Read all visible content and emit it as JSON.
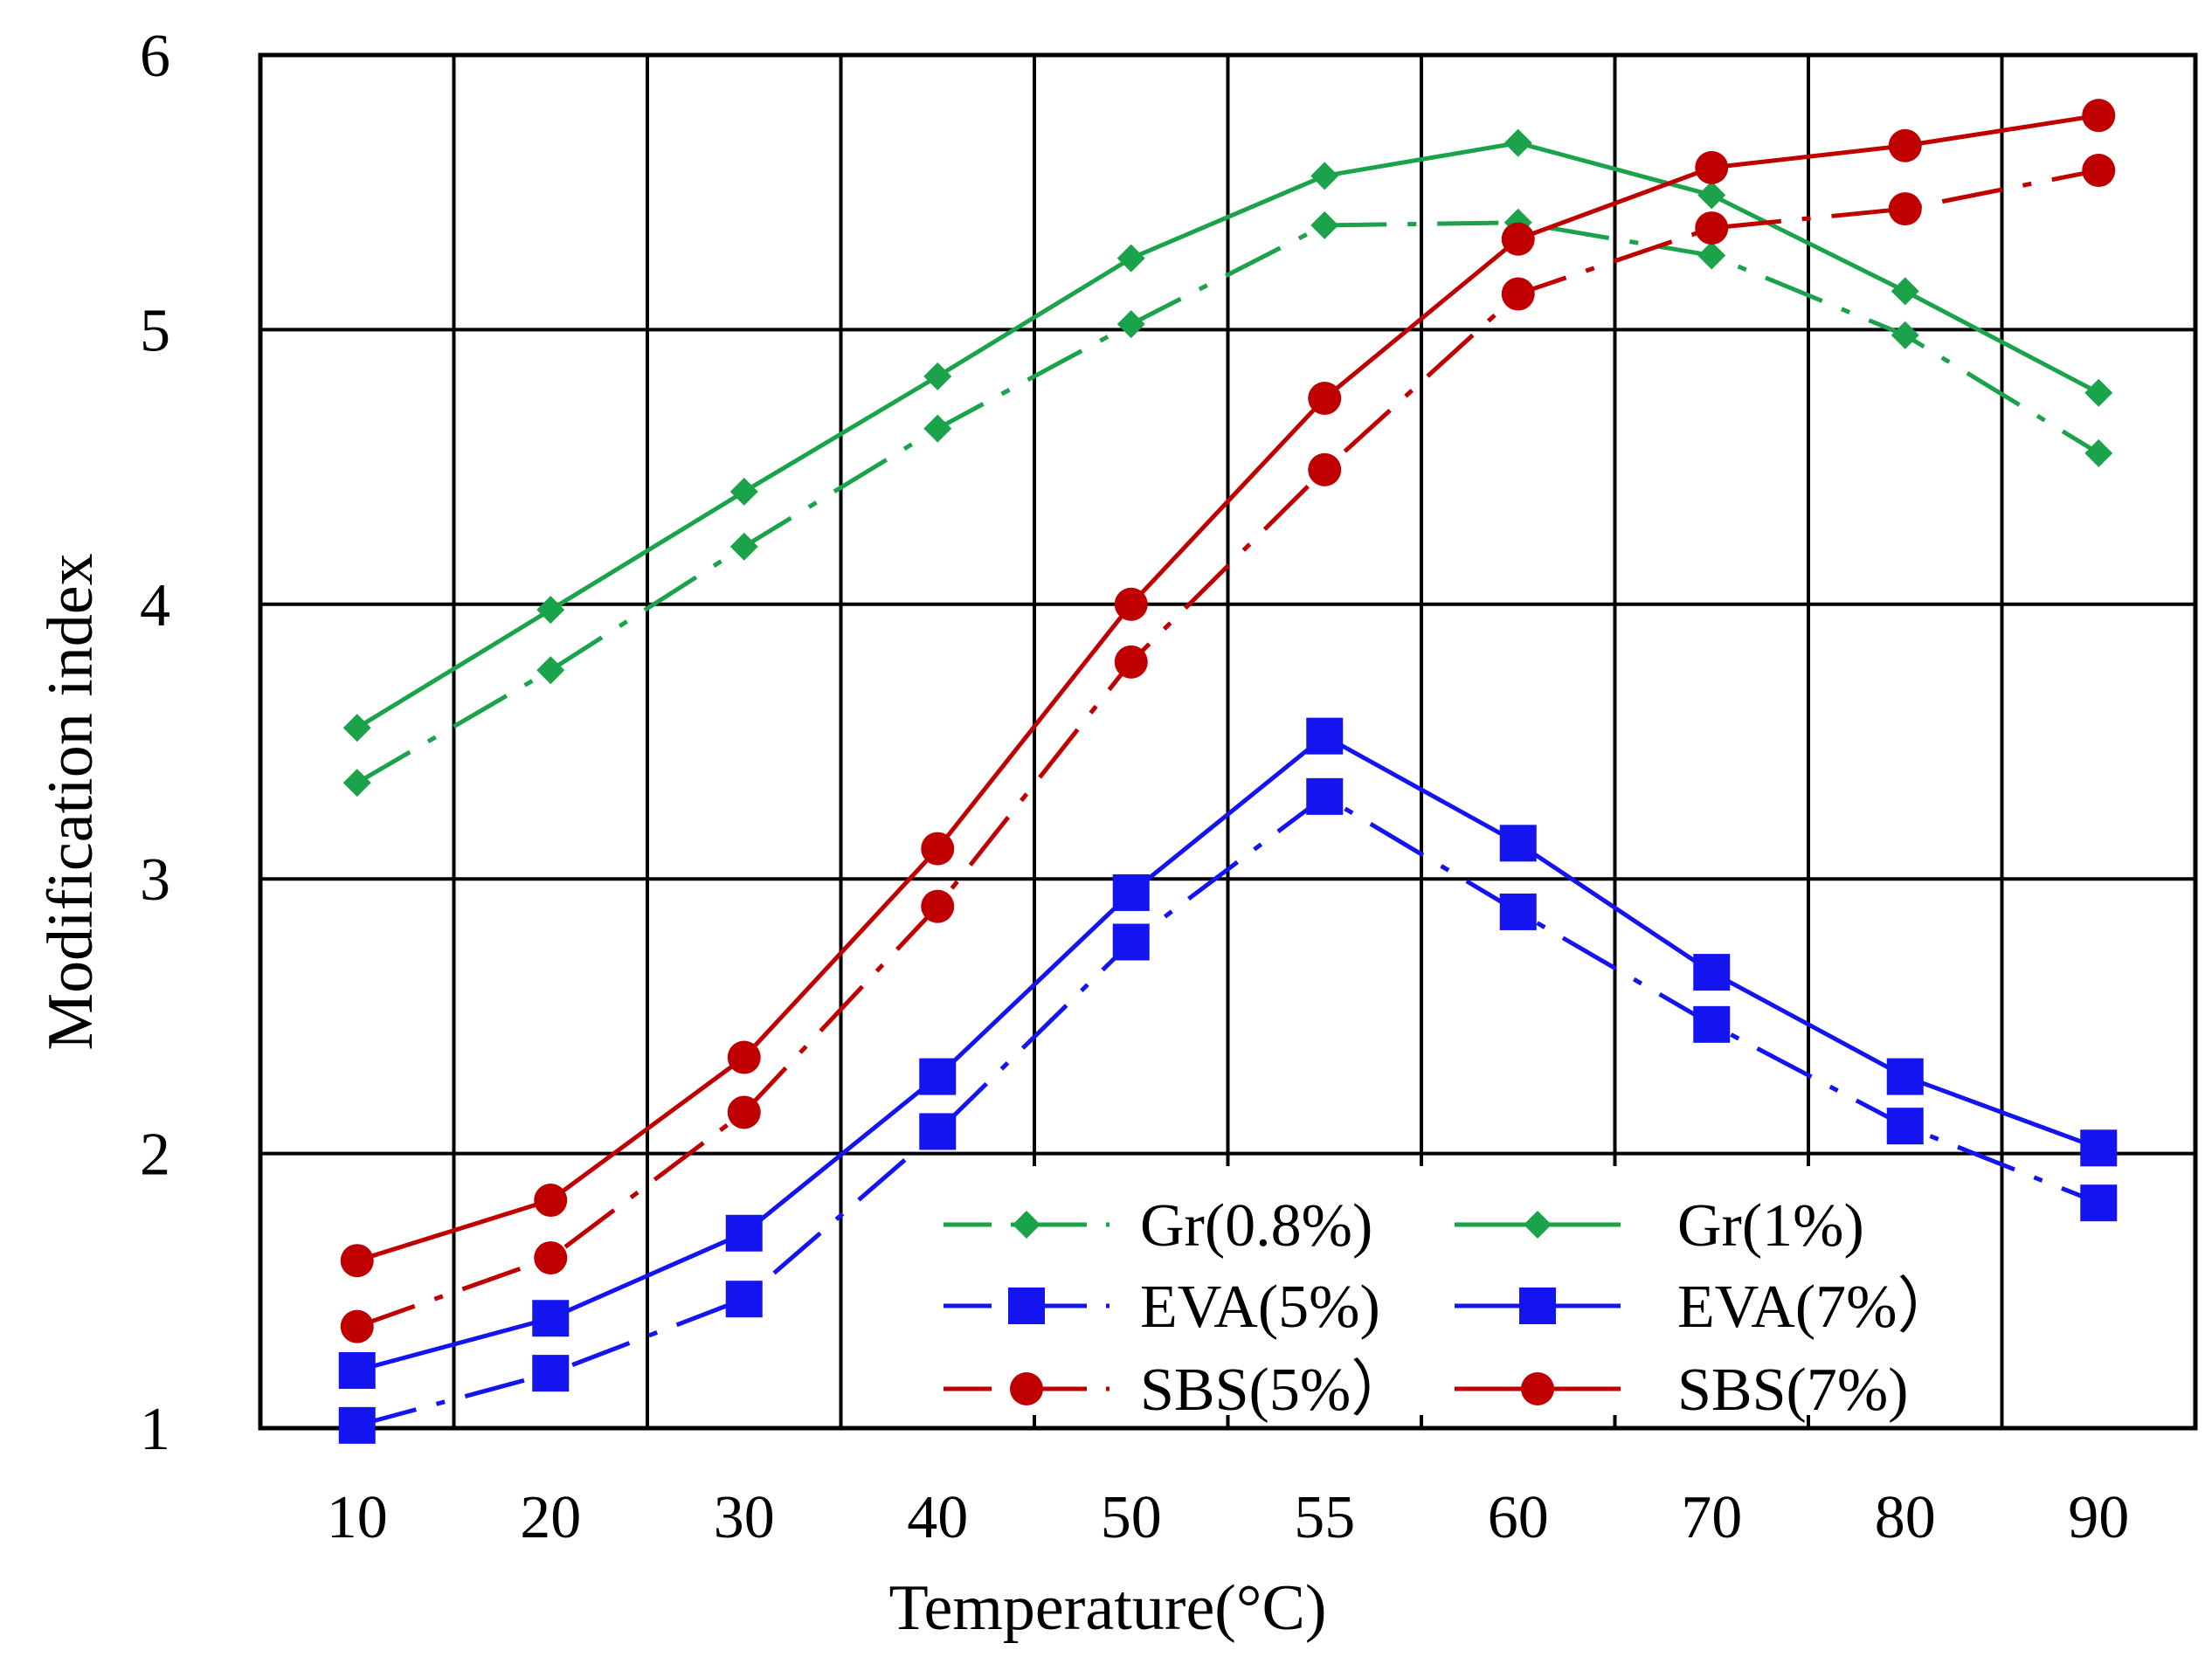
{
  "chart_data": {
    "type": "line",
    "title": "",
    "xlabel": "Temperature(°C)",
    "ylabel": "Modification index",
    "categories": [
      "10",
      "20",
      "30",
      "40",
      "50",
      "55",
      "60",
      "70",
      "80",
      "90"
    ],
    "ylim": [
      1,
      6
    ],
    "yticks": [
      "1",
      "2",
      "3",
      "4",
      "5",
      "6"
    ],
    "grid": true,
    "legend_position": "bottom-right",
    "series": [
      {
        "name": "Gr(0.8%)",
        "style": "dashdot",
        "marker": "diamond",
        "color": "#1aa34a",
        "values": [
          3.35,
          3.76,
          4.21,
          4.64,
          5.02,
          5.38,
          5.39,
          5.27,
          4.98,
          4.55
        ]
      },
      {
        "name": "Gr(1%)",
        "style": "solid",
        "marker": "diamond",
        "color": "#1aa34a",
        "values": [
          3.55,
          3.98,
          4.41,
          4.83,
          5.26,
          5.56,
          5.68,
          5.49,
          5.14,
          4.77
        ]
      },
      {
        "name": "EVA(5%)",
        "style": "dashdot",
        "marker": "square",
        "color": "#1414f0",
        "values": [
          1.01,
          1.2,
          1.47,
          2.08,
          2.77,
          3.3,
          2.88,
          2.47,
          2.1,
          1.82
        ]
      },
      {
        "name": "EVA(7%)",
        "style": "solid",
        "marker": "square",
        "color": "#1414f0",
        "values": [
          1.21,
          1.4,
          1.71,
          2.28,
          2.95,
          3.52,
          3.13,
          2.66,
          2.28,
          2.02
        ]
      },
      {
        "name": "SBS(5%)",
        "style": "dashdot",
        "marker": "circle",
        "color": "#c00000",
        "values": [
          1.37,
          1.62,
          2.15,
          2.9,
          3.79,
          4.49,
          5.13,
          5.37,
          5.44,
          5.58
        ]
      },
      {
        "name": "SBS(7%)",
        "style": "solid",
        "marker": "circle",
        "color": "#c00000",
        "values": [
          1.61,
          1.83,
          2.35,
          3.11,
          4.0,
          4.75,
          5.33,
          5.59,
          5.67,
          5.78
        ]
      }
    ],
    "legend": [
      "Gr(0.8%)",
      "Gr(1%)",
      "EVA(5%)",
      "EVA(7%）",
      "SBS(5%）",
      "SBS(7%)"
    ]
  }
}
